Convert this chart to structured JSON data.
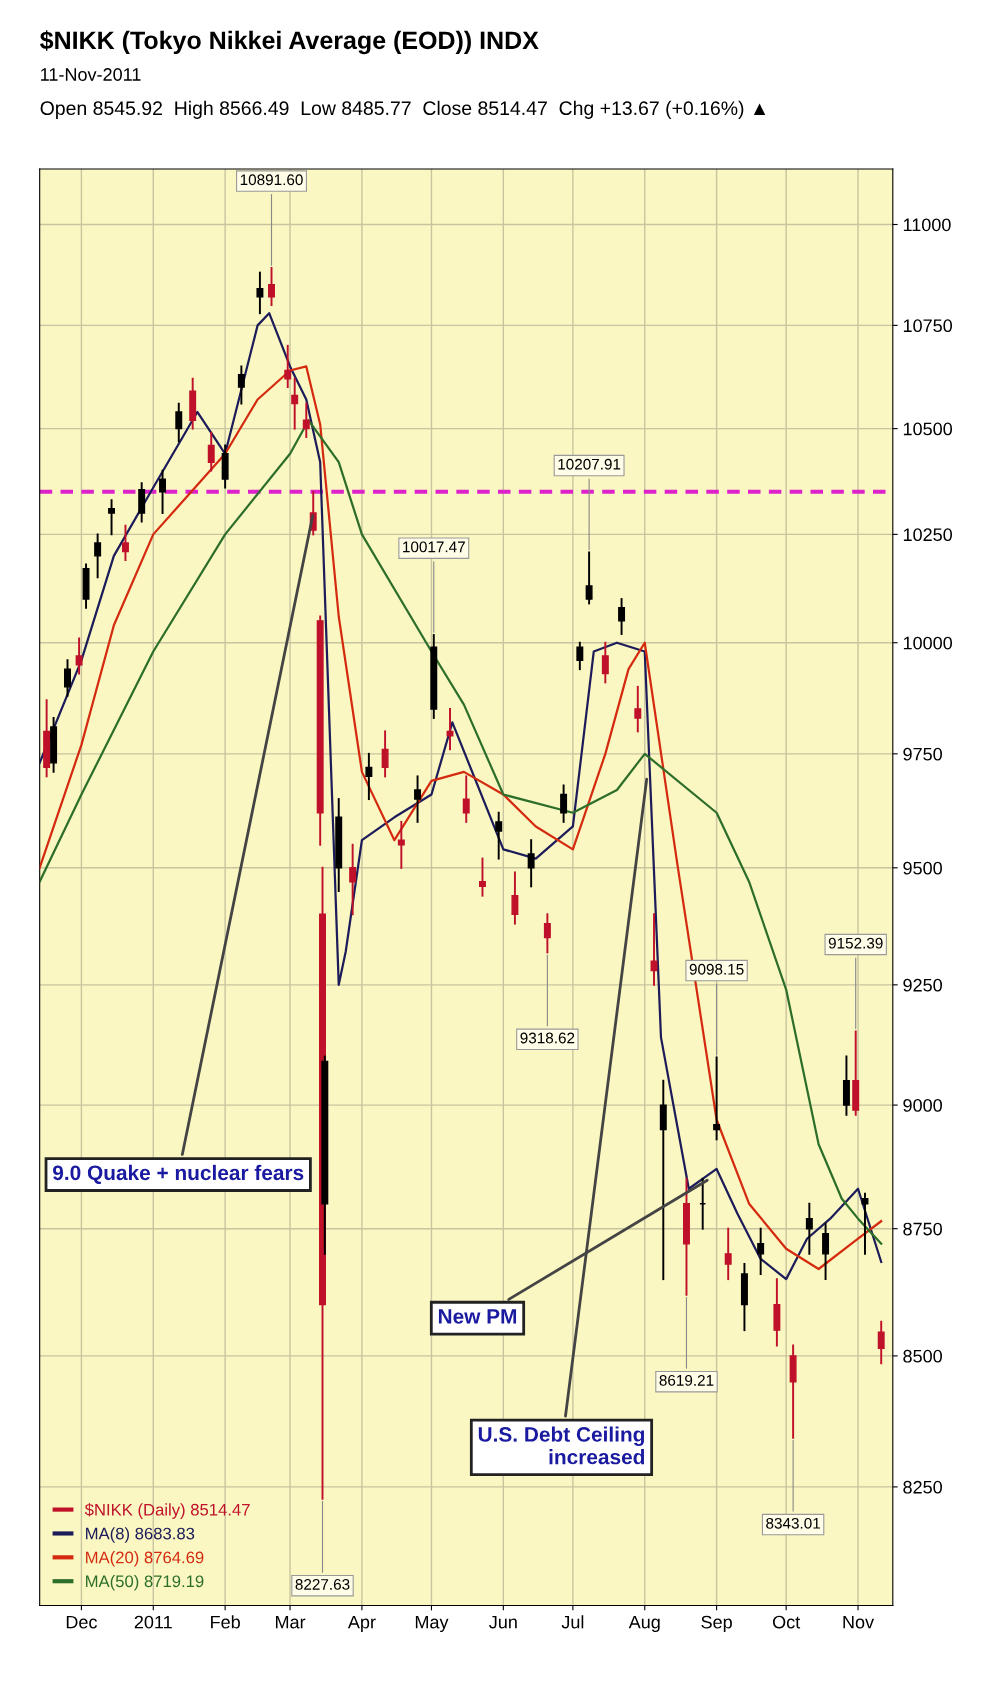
{
  "chart_data": {
    "type": "candlestick",
    "title": "$NIKK (Tokyo Nikkei Average (EOD)) INDX",
    "subtitle": "11-Nov-2011",
    "log": true,
    "grid": true,
    "legend": "bottom left",
    "xlim": [
      "2010-11-13",
      "2011-11-16"
    ],
    "xticks": [
      {
        "value": "2010-12-01",
        "label": "Dec"
      },
      {
        "value": "2011-01-01",
        "label": "2011"
      },
      {
        "value": "2011-02-01",
        "label": "Feb"
      },
      {
        "value": "2011-03-01",
        "label": "Mar"
      },
      {
        "value": "2011-04-01",
        "label": "Apr"
      },
      {
        "value": "2011-05-01",
        "label": "May"
      },
      {
        "value": "2011-06-01",
        "label": "Jun"
      },
      {
        "value": "2011-07-01",
        "label": "Jul"
      },
      {
        "value": "2011-08-01",
        "label": "Aug"
      },
      {
        "value": "2011-09-01",
        "label": "Sep"
      },
      {
        "value": "2011-10-01",
        "label": "Oct"
      },
      {
        "value": "2011-11-01",
        "label": "Nov"
      }
    ],
    "ylim": [
      8030,
      11140
    ],
    "yticks": [
      8250,
      8500,
      8750,
      9000,
      9250,
      9500,
      9750,
      10000,
      10250,
      10500,
      10750,
      11000
    ],
    "ref_lines": [
      {
        "axis": "y",
        "value": 10350,
        "color": "#dd22cc",
        "line_style": "dashed"
      }
    ],
    "series": [
      {
        "type": "candlestick",
        "name": "$NIKK (Daily) 8514.47",
        "x": [
          "2010-11-16",
          "2010-11-19",
          "2010-11-25",
          "2010-11-30",
          "2010-12-03",
          "2010-12-08",
          "2010-12-14",
          "2010-12-20",
          "2010-12-27",
          "2011-01-05",
          "2011-01-12",
          "2011-01-18",
          "2011-01-26",
          "2011-02-01",
          "2011-02-08",
          "2011-02-16",
          "2011-02-21",
          "2011-02-28",
          "2011-03-03",
          "2011-03-08",
          "2011-03-11",
          "2011-03-14",
          "2011-03-15",
          "2011-03-16",
          "2011-03-22",
          "2011-03-28",
          "2011-04-04",
          "2011-04-11",
          "2011-04-18",
          "2011-04-25",
          "2011-05-02",
          "2011-05-09",
          "2011-05-16",
          "2011-05-23",
          "2011-05-30",
          "2011-06-06",
          "2011-06-13",
          "2011-06-20",
          "2011-06-27",
          "2011-07-04",
          "2011-07-08",
          "2011-07-15",
          "2011-07-22",
          "2011-07-29",
          "2011-08-05",
          "2011-08-09",
          "2011-08-19",
          "2011-08-26",
          "2011-09-01",
          "2011-09-06",
          "2011-09-13",
          "2011-09-20",
          "2011-09-27",
          "2011-10-04",
          "2011-10-11",
          "2011-10-18",
          "2011-10-27",
          "2011-10-31",
          "2011-11-04",
          "2011-11-11"
        ],
        "ohlc": [
          [
            9800,
            9870,
            9700,
            9720
          ],
          [
            9730,
            9830,
            9710,
            9810
          ],
          [
            9900,
            9960,
            9880,
            9940
          ],
          [
            9970,
            10010,
            9930,
            9950
          ],
          [
            10100,
            10180,
            10080,
            10170
          ],
          [
            10200,
            10250,
            10150,
            10230
          ],
          [
            10300,
            10330,
            10250,
            10310
          ],
          [
            10230,
            10270,
            10190,
            10210
          ],
          [
            10300,
            10370,
            10280,
            10355
          ],
          [
            10350,
            10400,
            10300,
            10380
          ],
          [
            10500,
            10560,
            10470,
            10540
          ],
          [
            10590,
            10620,
            10500,
            10520
          ],
          [
            10460,
            10490,
            10400,
            10420
          ],
          [
            10380,
            10460,
            10360,
            10440
          ],
          [
            10600,
            10650,
            10560,
            10630
          ],
          [
            10820,
            10880,
            10780,
            10840
          ],
          [
            10850,
            10891.6,
            10800,
            10820
          ],
          [
            10640,
            10700,
            10600,
            10620
          ],
          [
            10580,
            10620,
            10500,
            10560
          ],
          [
            10520,
            10560,
            10480,
            10500
          ],
          [
            10300,
            10350,
            10250,
            10260
          ],
          [
            10050,
            10060,
            9550,
            9620
          ],
          [
            9400,
            9500,
            8227.63,
            8600
          ],
          [
            8800,
            9100,
            8700,
            9090
          ],
          [
            9500,
            9650,
            9450,
            9610
          ],
          [
            9500,
            9550,
            9400,
            9470
          ],
          [
            9700,
            9750,
            9650,
            9720
          ],
          [
            9760,
            9800,
            9700,
            9720
          ],
          [
            9550,
            9600,
            9500,
            9560
          ],
          [
            9650,
            9700,
            9600,
            9670
          ],
          [
            9850,
            10017.47,
            9830,
            9990
          ],
          [
            9800,
            9850,
            9760,
            9790
          ],
          [
            9650,
            9700,
            9600,
            9620
          ],
          [
            9470,
            9520,
            9440,
            9460
          ],
          [
            9580,
            9620,
            9520,
            9600
          ],
          [
            9440,
            9490,
            9380,
            9400
          ],
          [
            9500,
            9560,
            9460,
            9530
          ],
          [
            9380,
            9400,
            9318.62,
            9350
          ],
          [
            9620,
            9680,
            9600,
            9660
          ],
          [
            9960,
            10000,
            9940,
            9990
          ],
          [
            10100,
            10207.91,
            10090,
            10130
          ],
          [
            9970,
            10000,
            9910,
            9930
          ],
          [
            10050,
            10100,
            10020,
            10080
          ],
          [
            9850,
            9900,
            9800,
            9830
          ],
          [
            9300,
            9400,
            9250,
            9280
          ],
          [
            8950,
            9050,
            8650,
            9000
          ],
          [
            8800,
            8850,
            8619.21,
            8720
          ],
          [
            8800,
            8850,
            8750,
            8800
          ],
          [
            8950,
            9098.15,
            8930,
            8960
          ],
          [
            8700,
            8750,
            8650,
            8680
          ],
          [
            8600,
            8680,
            8550,
            8660
          ],
          [
            8700,
            8750,
            8660,
            8720
          ],
          [
            8600,
            8650,
            8520,
            8550
          ],
          [
            8500,
            8520,
            8343.01,
            8450
          ],
          [
            8750,
            8800,
            8700,
            8770
          ],
          [
            8700,
            8760,
            8650,
            8740
          ],
          [
            9000,
            9100,
            8980,
            9050
          ],
          [
            9050,
            9152.39,
            8980,
            8990
          ],
          [
            8800,
            8820,
            8700,
            8810
          ],
          [
            8545.92,
            8566.49,
            8485.77,
            8514.47
          ]
        ],
        "colors": [
          "#c0112a",
          "#000000",
          "#000000",
          "#c0112a",
          "#000000",
          "#000000",
          "#000000",
          "#c0112a",
          "#000000",
          "#000000",
          "#000000",
          "#c0112a",
          "#c0112a",
          "#000000",
          "#000000",
          "#000000",
          "#c0112a",
          "#c0112a",
          "#c0112a",
          "#c0112a",
          "#c0112a",
          "#c0112a",
          "#c0112a",
          "#000000",
          "#000000",
          "#c0112a",
          "#000000",
          "#c0112a",
          "#c0112a",
          "#000000",
          "#000000",
          "#c0112a",
          "#c0112a",
          "#c0112a",
          "#000000",
          "#c0112a",
          "#000000",
          "#c0112a",
          "#000000",
          "#000000",
          "#000000",
          "#c0112a",
          "#000000",
          "#c0112a",
          "#c0112a",
          "#000000",
          "#c0112a",
          "#000000",
          "#000000",
          "#c0112a",
          "#000000",
          "#000000",
          "#c0112a",
          "#c0112a",
          "#000000",
          "#000000",
          "#000000",
          "#c0112a",
          "#000000",
          "#c0112a"
        ]
      },
      {
        "type": "line",
        "name": "MA(8) 8683.83",
        "color": "#1c1c5a",
        "x": [
          "2010-11-13",
          "2010-12-01",
          "2010-12-15",
          "2011-01-01",
          "2011-01-20",
          "2011-02-01",
          "2011-02-15",
          "2011-02-20",
          "2011-03-01",
          "2011-03-08",
          "2011-03-14",
          "2011-03-22",
          "2011-03-25",
          "2011-04-01",
          "2011-04-15",
          "2011-05-01",
          "2011-05-10",
          "2011-06-01",
          "2011-06-15",
          "2011-07-01",
          "2011-07-10",
          "2011-07-20",
          "2011-08-01",
          "2011-08-08",
          "2011-08-20",
          "2011-09-01",
          "2011-09-10",
          "2011-09-20",
          "2011-10-01",
          "2011-10-10",
          "2011-10-20",
          "2011-11-01",
          "2011-11-11"
        ],
        "values": [
          9730,
          9960,
          10200,
          10360,
          10540,
          10440,
          10750,
          10780,
          10650,
          10570,
          10420,
          9250,
          9320,
          9560,
          9610,
          9660,
          9820,
          9540,
          9520,
          9590,
          9980,
          10000,
          9980,
          9140,
          8830,
          8870,
          8780,
          8690,
          8650,
          8730,
          8770,
          8830,
          8684
        ]
      },
      {
        "type": "line",
        "name": "MA(20) 8764.69",
        "color": "#d42a10",
        "x": [
          "2010-11-13",
          "2010-12-01",
          "2010-12-15",
          "2011-01-01",
          "2011-02-01",
          "2011-02-15",
          "2011-03-01",
          "2011-03-08",
          "2011-03-14",
          "2011-03-22",
          "2011-04-01",
          "2011-04-15",
          "2011-05-01",
          "2011-05-15",
          "2011-06-01",
          "2011-06-15",
          "2011-07-01",
          "2011-07-15",
          "2011-07-25",
          "2011-08-01",
          "2011-08-15",
          "2011-09-01",
          "2011-09-15",
          "2011-10-01",
          "2011-10-15",
          "2011-11-01",
          "2011-11-11"
        ],
        "values": [
          9500,
          9770,
          10040,
          10250,
          10440,
          10570,
          10640,
          10650,
          10510,
          10060,
          9710,
          9560,
          9690,
          9710,
          9660,
          9590,
          9540,
          9750,
          9940,
          10000,
          9510,
          8970,
          8800,
          8710,
          8670,
          8730,
          8765
        ]
      },
      {
        "type": "line",
        "name": "MA(50) 8719.19",
        "color": "#2d6e2a",
        "x": [
          "2010-11-13",
          "2010-12-01",
          "2011-01-01",
          "2011-02-01",
          "2011-03-01",
          "2011-03-09",
          "2011-03-22",
          "2011-04-01",
          "2011-05-01",
          "2011-05-15",
          "2011-06-01",
          "2011-07-01",
          "2011-07-20",
          "2011-08-01",
          "2011-09-01",
          "2011-09-15",
          "2011-10-01",
          "2011-10-15",
          "2011-10-25",
          "2011-11-01",
          "2011-11-11"
        ],
        "values": [
          9470,
          9660,
          9980,
          10250,
          10440,
          10520,
          10420,
          10250,
          9980,
          9860,
          9660,
          9620,
          9670,
          9750,
          9620,
          9470,
          9240,
          8920,
          8810,
          8770,
          8720
        ]
      }
    ],
    "annotations": [
      "Open 8545.92  High 8566.49  Low 8485.77  Close 8514.47  Chg +13.67 (+0.16%) ▲",
      {
        "text": "10891.60",
        "x": "2011-02-21",
        "y": 10891.6
      },
      {
        "text": "8227.63",
        "x": "2011-03-15",
        "y": 8227.63
      },
      {
        "text": "10017.47",
        "x": "2011-05-02",
        "y": 10017.47
      },
      {
        "text": "9318.62",
        "x": "2011-06-20",
        "y": 9318.62
      },
      {
        "text": "10207.91",
        "x": "2011-07-08",
        "y": 10207.91
      },
      {
        "text": "9098.15",
        "x": "2011-09-01",
        "y": 9098.15
      },
      {
        "text": "8619.21",
        "x": "2011-08-19",
        "y": 8619.21
      },
      {
        "text": "8343.01",
        "x": "2011-10-04",
        "y": 8343.01
      },
      {
        "text": "9152.39",
        "x": "2011-10-31",
        "y": 9152.39
      },
      {
        "text": "9.0 Quake + nuclear fears",
        "x": "2011-03-11",
        "y": 10300
      },
      {
        "text": "U.S. Debt Ceiling\nincreased",
        "x": "2011-08-02",
        "y": 9700
      },
      {
        "text": "New PM",
        "x": "2011-08-29",
        "y": 8850
      }
    ]
  }
}
